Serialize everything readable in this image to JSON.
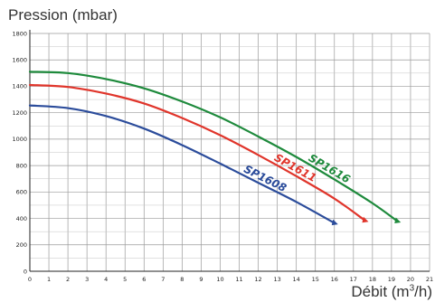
{
  "chart_data": {
    "type": "line",
    "title": "Pression (mbar)",
    "xlabel_prefix": "Débit (m",
    "xlabel_sup": "3",
    "xlabel_suffix": "/h)",
    "xlim": [
      0,
      21
    ],
    "ylim": [
      0,
      1800
    ],
    "x_ticks": [
      0,
      1,
      2,
      3,
      4,
      5,
      6,
      7,
      8,
      9,
      10,
      11,
      12,
      13,
      14,
      15,
      16,
      17,
      18,
      19,
      20,
      21
    ],
    "y_ticks": [
      0,
      200,
      400,
      600,
      800,
      1000,
      1200,
      1400,
      1600,
      1800
    ],
    "grid": true,
    "series": [
      {
        "name": "SP1608",
        "color": "#2b4c9b",
        "points": [
          [
            0,
            1255
          ],
          [
            2,
            1235
          ],
          [
            4,
            1175
          ],
          [
            6,
            1080
          ],
          [
            8,
            955
          ],
          [
            10,
            815
          ],
          [
            12,
            670
          ],
          [
            14,
            525
          ],
          [
            16,
            365
          ]
        ]
      },
      {
        "name": "SP1611",
        "color": "#e0352b",
        "points": [
          [
            0,
            1410
          ],
          [
            2,
            1395
          ],
          [
            4,
            1345
          ],
          [
            6,
            1270
          ],
          [
            8,
            1160
          ],
          [
            10,
            1030
          ],
          [
            12,
            880
          ],
          [
            14,
            720
          ],
          [
            16,
            550
          ],
          [
            17.6,
            385
          ]
        ]
      },
      {
        "name": "SP1616",
        "color": "#1e8a3c",
        "points": [
          [
            0,
            1510
          ],
          [
            2,
            1500
          ],
          [
            4,
            1455
          ],
          [
            6,
            1385
          ],
          [
            8,
            1285
          ],
          [
            10,
            1165
          ],
          [
            12,
            1020
          ],
          [
            14,
            865
          ],
          [
            16,
            695
          ],
          [
            18,
            515
          ],
          [
            19.3,
            380
          ]
        ]
      }
    ]
  }
}
